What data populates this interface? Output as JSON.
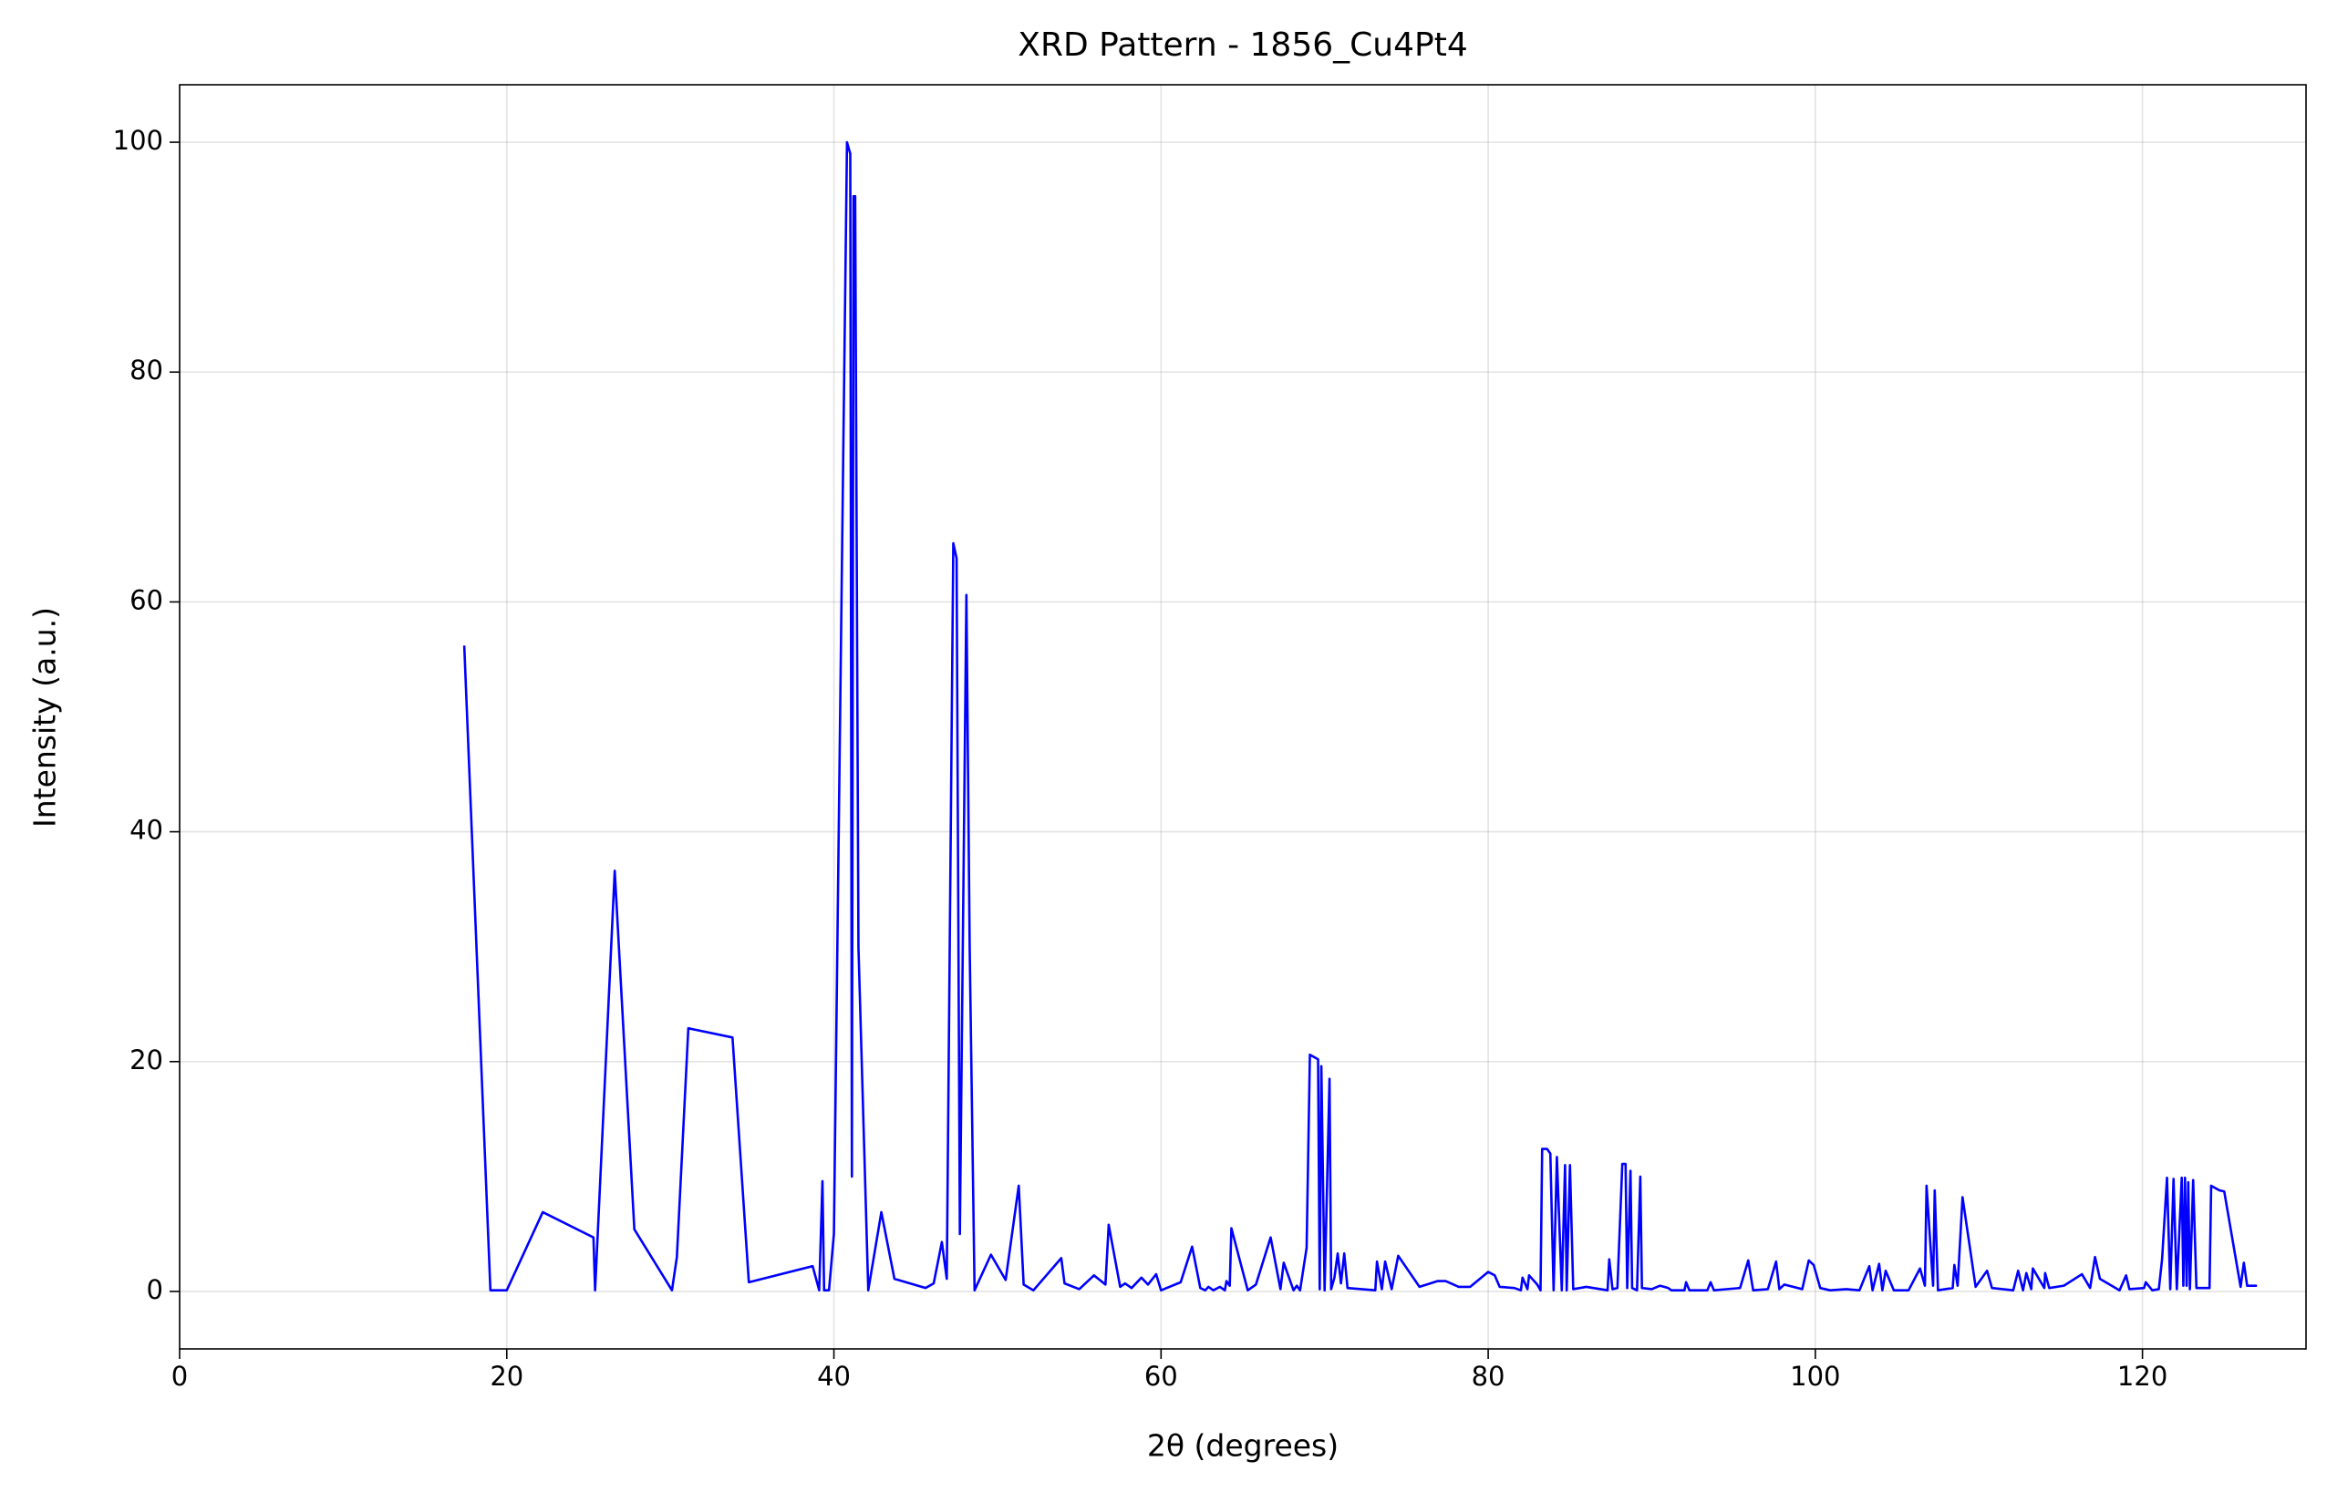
{
  "chart_data": {
    "type": "line",
    "title": "XRD Pattern - 1856_Cu4Pt4",
    "x_label": "2θ (degrees)",
    "y_label": "Intensity (a.u.)",
    "xlim": [
      0,
      130
    ],
    "ylim": [
      -5,
      105
    ],
    "xticks": [
      0,
      20,
      40,
      60,
      80,
      100,
      120
    ],
    "yticks": [
      0,
      20,
      40,
      60,
      80,
      100
    ],
    "grid": true,
    "series": [
      {
        "color": "#0000ff",
        "x": [
          17.4,
          19.0,
          20.0,
          22.2,
          25.3,
          25.4,
          26.6,
          27.8,
          30.1,
          30.4,
          31.1,
          33.8,
          34.8,
          38.7,
          39.1,
          39.3,
          39.4,
          39.7,
          40.0,
          40.8,
          41.0,
          41.1,
          41.2,
          41.3,
          41.5,
          42.1,
          42.9,
          43.7,
          45.6,
          46.1,
          46.6,
          46.9,
          47.3,
          47.5,
          47.7,
          48.1,
          48.3,
          48.6,
          49.6,
          50.5,
          51.3,
          51.6,
          52.2,
          53.9,
          54.1,
          55.0,
          55.9,
          56.6,
          56.8,
          57.5,
          57.8,
          58.2,
          58.8,
          59.2,
          59.7,
          60.0,
          61.2,
          61.9,
          62.4,
          62.7,
          62.9,
          63.2,
          63.6,
          63.9,
          64.0,
          64.2,
          64.3,
          65.3,
          65.8,
          66.7,
          67.3,
          67.5,
          68.1,
          68.3,
          68.5,
          68.9,
          69.1,
          69.6,
          69.7,
          69.8,
          70.0,
          70.3,
          70.4,
          70.6,
          70.8,
          71.0,
          71.2,
          71.4,
          73.1,
          73.2,
          73.5,
          73.7,
          74.1,
          74.5,
          75.8,
          76.9,
          77.4,
          78.2,
          78.9,
          80.0,
          80.4,
          80.7,
          81.6,
          82.0,
          82.1,
          82.4,
          82.5,
          83.0,
          83.2,
          83.3,
          83.6,
          83.8,
          84.0,
          84.2,
          84.5,
          84.7,
          84.8,
          85.0,
          85.2,
          86.0,
          87.3,
          87.4,
          87.6,
          87.9,
          88.2,
          88.4,
          88.5,
          88.7,
          88.8,
          89.1,
          89.3,
          89.4,
          90.0,
          90.5,
          91.0,
          91.2,
          92.0,
          92.1,
          92.3,
          93.4,
          93.6,
          93.8,
          95.4,
          95.9,
          96.2,
          97.1,
          97.6,
          97.8,
          98.1,
          99.2,
          99.6,
          99.9,
          100.3,
          100.9,
          101.9,
          102.7,
          103.3,
          103.5,
          103.9,
          104.1,
          104.3,
          104.8,
          105.7,
          106.4,
          106.7,
          106.8,
          107.2,
          107.3,
          107.5,
          108.4,
          108.5,
          108.7,
          109.0,
          109.8,
          110.5,
          110.8,
          112.1,
          112.4,
          112.7,
          112.9,
          113.2,
          113.3,
          114.0,
          114.05,
          114.3,
          115.2,
          116.3,
          116.8,
          117.1,
          117.4,
          118.6,
          119.0,
          119.2,
          120.1,
          120.2,
          120.6,
          121.0,
          121.2,
          121.5,
          121.7,
          121.9,
          122.1,
          122.4,
          122.5,
          122.6,
          122.7,
          122.8,
          122.9,
          123.1,
          123.3,
          124.1,
          124.2,
          124.7,
          125.0,
          126.0,
          126.2,
          126.4,
          127.0
        ],
        "values": [
          56.2,
          0.1,
          0.1,
          6.9,
          4.7,
          0.1,
          36.6,
          5.4,
          0.1,
          3,
          22.9,
          22.1,
          0.8,
          2.2,
          0.1,
          9.6,
          0.1,
          0.1,
          5,
          100,
          99,
          10,
          95.3,
          95.3,
          30,
          0.1,
          6.9,
          1.1,
          0.3,
          0.7,
          4.3,
          1.1,
          65.1,
          63.8,
          5,
          60.6,
          30,
          0.1,
          3.2,
          1,
          9.2,
          0.6,
          0.1,
          2.9,
          0.7,
          0.2,
          1.4,
          0.6,
          5.8,
          0.4,
          0.7,
          0.3,
          1.2,
          0.6,
          1.5,
          0.1,
          0.8,
          3.9,
          0.3,
          0.1,
          0.4,
          0.1,
          0.4,
          0.1,
          0.9,
          0.5,
          5.5,
          0.1,
          0.6,
          4.7,
          0.2,
          2.5,
          0.1,
          0.5,
          0.1,
          3.8,
          20.6,
          20.2,
          0.2,
          19.6,
          0.1,
          18.5,
          0.2,
          1.2,
          3.3,
          0.7,
          3.3,
          0.3,
          0.1,
          2.6,
          0.2,
          2.6,
          0.2,
          3.1,
          0.4,
          0.9,
          0.9,
          0.4,
          0.4,
          1.7,
          1.4,
          0.4,
          0.3,
          0.1,
          1.2,
          0.2,
          1.4,
          0.6,
          0.1,
          12.4,
          12.4,
          12,
          0.1,
          11.7,
          0.1,
          11,
          0.1,
          11,
          0.2,
          0.4,
          0.1,
          2.8,
          0.2,
          0.3,
          11.1,
          11.1,
          0.3,
          10.5,
          0.3,
          0.1,
          10,
          0.3,
          0.2,
          0.5,
          0.3,
          0.1,
          0.1,
          0.8,
          0.1,
          0.1,
          0.8,
          0.1,
          0.3,
          2.7,
          0.1,
          0.2,
          2.6,
          0.2,
          0.6,
          0.2,
          2.7,
          2.3,
          0.3,
          0.1,
          0.2,
          0.1,
          2.2,
          0.1,
          2.4,
          0.1,
          1.8,
          0.1,
          0.1,
          2,
          0.5,
          9.2,
          0.5,
          8.8,
          0.1,
          0.3,
          2.3,
          0.5,
          8.2,
          0.4,
          1.8,
          0.3,
          0.1,
          1.8,
          0.1,
          1.6,
          0.2,
          2,
          0.3,
          1.6,
          0.3,
          0.5,
          1.5,
          0.3,
          3,
          1.1,
          0.1,
          1.4,
          0.2,
          0.3,
          0.8,
          0.1,
          0.2,
          2.8,
          9.9,
          0.2,
          9.8,
          0.2,
          9.9,
          0.5,
          9.9,
          0.5,
          9.5,
          0.2,
          9.7,
          0.3,
          0.3,
          9.2,
          8.8,
          8.7,
          0.4,
          2.5,
          0.5,
          0.5
        ]
      }
    ]
  }
}
